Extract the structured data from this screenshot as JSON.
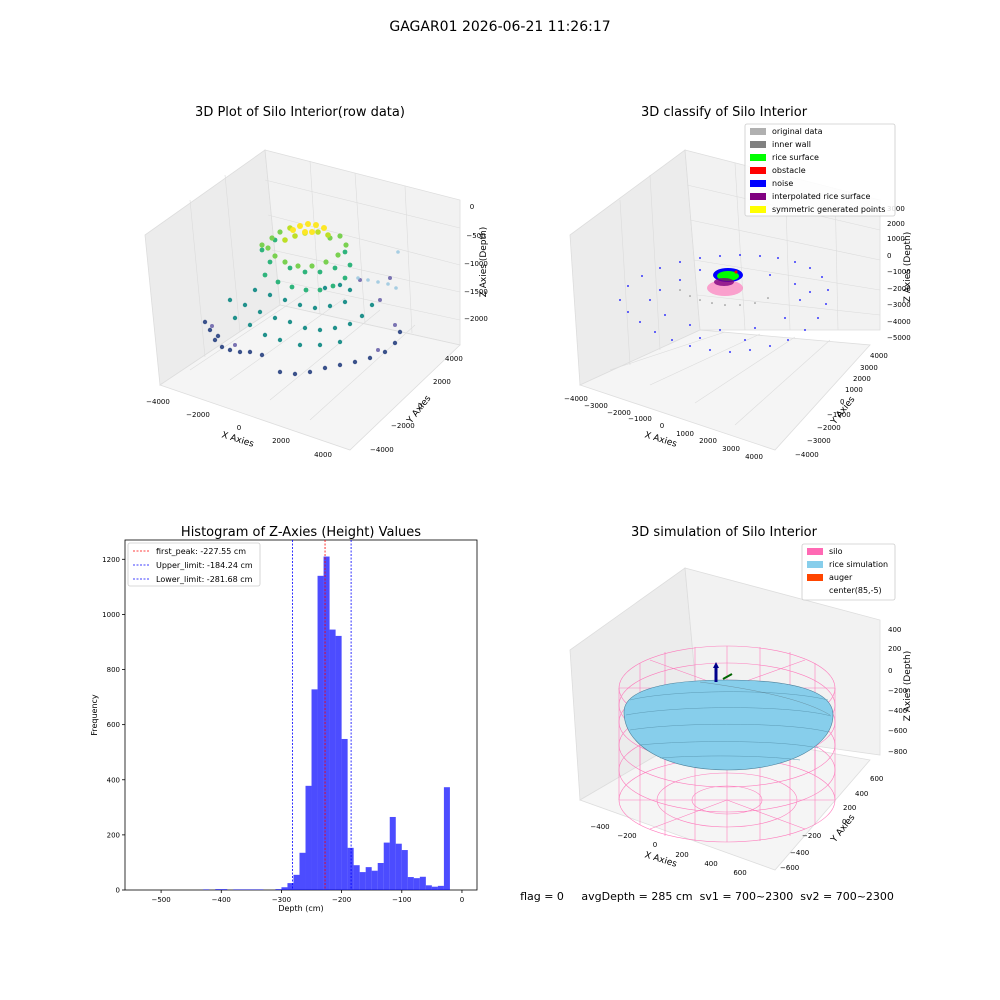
{
  "figure": {
    "suptitle": "GAGAR01 2026-06-21 11:26:17"
  },
  "panel_raw": {
    "title": "3D Plot of Silo Interior(row data)",
    "xlabel": "X Axies",
    "ylabel": "Y Axies",
    "zlabel": "Z Axies (Depth)",
    "x_ticks": [
      "−4000",
      "−2000",
      "0",
      "2000",
      "4000"
    ],
    "y_ticks": [
      "−4000",
      "−2000",
      "0",
      "2000",
      "4000"
    ],
    "z_ticks": [
      "0",
      "−500",
      "−1000",
      "−1500",
      "−2000"
    ]
  },
  "panel_classify": {
    "title": "3D classify of Silo Interior",
    "xlabel": "X Axies",
    "ylabel": "Y Axies",
    "zlabel": "Z Axies (Depth)",
    "x_ticks": [
      "−4000",
      "−3000",
      "−2000",
      "−1000",
      "0",
      "1000",
      "2000",
      "3000",
      "4000"
    ],
    "y_ticks": [
      "−4000",
      "−3000",
      "−2000",
      "−1000",
      "0",
      "1000",
      "2000",
      "3000",
      "4000"
    ],
    "z_ticks": [
      "3000",
      "2000",
      "1000",
      "0",
      "−1000",
      "−2000",
      "−3000",
      "−4000",
      "−5000"
    ],
    "legend": [
      {
        "label": "original data",
        "color": "#b0b0b0"
      },
      {
        "label": "inner wall",
        "color": "#808080"
      },
      {
        "label": "rice surface",
        "color": "#00ff00"
      },
      {
        "label": "obstacle",
        "color": "#ff0000"
      },
      {
        "label": "noise",
        "color": "#0000ff"
      },
      {
        "label": "interpolated rice surface",
        "color": "#800080"
      },
      {
        "label": "symmetric generated points",
        "color": "#ffff00"
      }
    ]
  },
  "panel_sim": {
    "title": "3D simulation of Silo Interior",
    "xlabel": "X Axies",
    "ylabel": "Y Axies",
    "zlabel": "Z Axies (Depth)",
    "x_ticks": [
      "−400",
      "−200",
      "0",
      "200",
      "400",
      "600"
    ],
    "y_ticks": [
      "−600",
      "−400",
      "−200",
      "0",
      "200",
      "400",
      "600"
    ],
    "z_ticks": [
      "400",
      "200",
      "0",
      "−200",
      "−400",
      "−600",
      "−800"
    ],
    "legend": [
      {
        "label": "silo",
        "color": "#ff69b4"
      },
      {
        "label": "rice simulation",
        "color": "#87ceeb"
      },
      {
        "label": "auger",
        "color": "#ff4500"
      },
      {
        "label": "center(85,-5)",
        "color": "#ffffff"
      }
    ],
    "status_line": "flag = 0     avgDepth = 285 cm  sv1 = 700~2300  sv2 = 700~2300"
  },
  "chart_data": [
    {
      "type": "bar",
      "title": "Histogram of Z-Axies (Height) Values",
      "xlabel": "Depth (cm)",
      "ylabel": "Frequency",
      "xlim": [
        -560,
        25
      ],
      "ylim": [
        0,
        1270
      ],
      "x_ticks": [
        -500,
        -400,
        -300,
        -200,
        -100,
        0
      ],
      "y_ticks": [
        0,
        200,
        400,
        600,
        800,
        1000,
        1200
      ],
      "bar_color": "#0000ff",
      "bin_width": 10,
      "bins": [
        {
          "x": -430,
          "value": 2
        },
        {
          "x": -410,
          "value": 3
        },
        {
          "x": -400,
          "value": 3
        },
        {
          "x": -380,
          "value": 2
        },
        {
          "x": -370,
          "value": 2
        },
        {
          "x": -360,
          "value": 2
        },
        {
          "x": -350,
          "value": 2
        },
        {
          "x": -340,
          "value": 2
        },
        {
          "x": -310,
          "value": 3
        },
        {
          "x": -300,
          "value": 10
        },
        {
          "x": -290,
          "value": 25
        },
        {
          "x": -280,
          "value": 55
        },
        {
          "x": -270,
          "value": 135
        },
        {
          "x": -260,
          "value": 378
        },
        {
          "x": -250,
          "value": 728
        },
        {
          "x": -240,
          "value": 1140
        },
        {
          "x": -230,
          "value": 1210
        },
        {
          "x": -220,
          "value": 945
        },
        {
          "x": -210,
          "value": 922
        },
        {
          "x": -200,
          "value": 548
        },
        {
          "x": -190,
          "value": 153
        },
        {
          "x": -180,
          "value": 90
        },
        {
          "x": -170,
          "value": 65
        },
        {
          "x": -160,
          "value": 83
        },
        {
          "x": -150,
          "value": 70
        },
        {
          "x": -140,
          "value": 98
        },
        {
          "x": -130,
          "value": 172
        },
        {
          "x": -120,
          "value": 265
        },
        {
          "x": -110,
          "value": 168
        },
        {
          "x": -100,
          "value": 145
        },
        {
          "x": -90,
          "value": 47
        },
        {
          "x": -80,
          "value": 43
        },
        {
          "x": -70,
          "value": 48
        },
        {
          "x": -60,
          "value": 17
        },
        {
          "x": -50,
          "value": 12
        },
        {
          "x": -40,
          "value": 15
        },
        {
          "x": -30,
          "value": 373
        }
      ],
      "vlines": [
        {
          "label": "first_peak: -227.55 cm",
          "x": -227.55,
          "color": "#ff0000"
        },
        {
          "label": "Upper_limit: -184.24 cm",
          "x": -184.24,
          "color": "#0000ff"
        },
        {
          "label": "Lower_limit: -281.68 cm",
          "x": -281.68,
          "color": "#0000ff"
        }
      ],
      "legend_position": "upper-left"
    }
  ]
}
